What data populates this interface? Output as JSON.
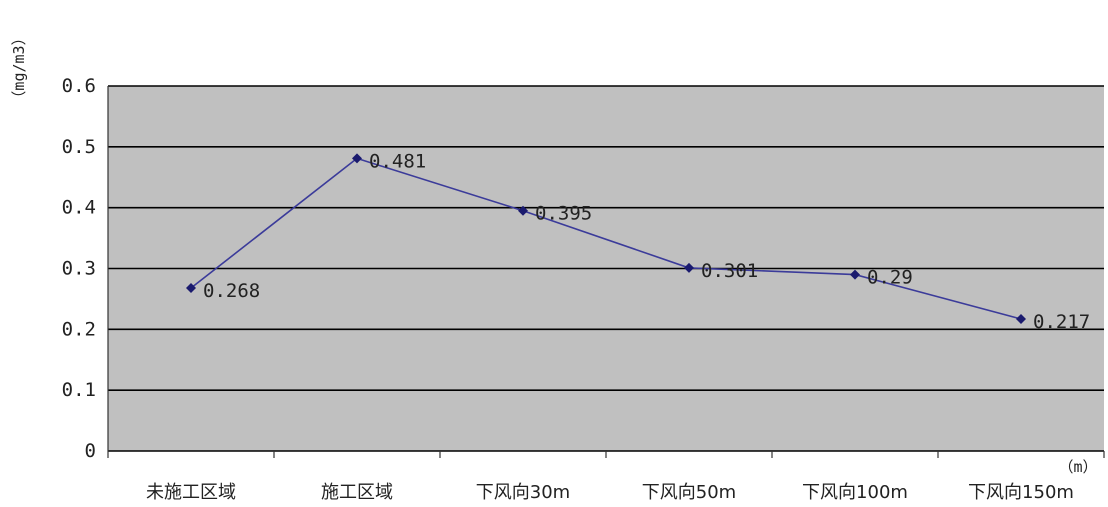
{
  "chart_data": {
    "type": "line",
    "title": "",
    "ylabel": "（mg/m3）",
    "xlabel": "（m）",
    "categories": [
      "未施工区域",
      "施工区域",
      "下风向30m",
      "下风向50m",
      "下风向100m",
      "下风向150m"
    ],
    "series": [
      {
        "values": [
          0.268,
          0.481,
          0.395,
          0.301,
          0.29,
          0.217
        ],
        "data_labels": [
          "0.268",
          "0.481",
          "0.395",
          "0.301",
          "0.29",
          "0.217"
        ]
      }
    ],
    "ylim": [
      0,
      0.6
    ],
    "yticks": [
      0,
      0.1,
      0.2,
      0.3,
      0.4,
      0.5,
      0.6
    ],
    "ytick_labels": [
      "0",
      "0.1",
      "0.2",
      "0.3",
      "0.4",
      "0.5",
      "0.6"
    ],
    "grid": true,
    "legend": "none",
    "colors": {
      "plot_background": "#c0c0c0",
      "gridline": "#000000",
      "series_line": "#3b3b9a",
      "marker": "#1a1a6e"
    }
  }
}
